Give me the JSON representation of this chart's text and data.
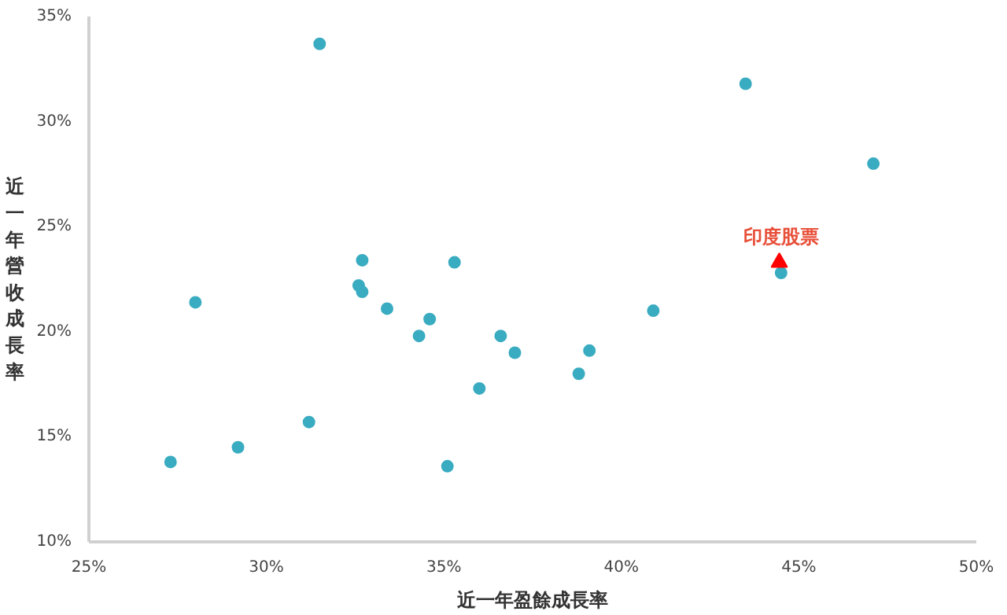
{
  "chart_data": {
    "type": "scatter",
    "xlabel": "近一年盈餘成長率",
    "ylabel": "近一年營收成長率",
    "marker": "circle",
    "grid": false,
    "xlim": [
      25,
      50
    ],
    "ylim": [
      10,
      35
    ],
    "xticks": [
      {
        "value": 25,
        "label": "25%"
      },
      {
        "value": 30,
        "label": "30%"
      },
      {
        "value": 35,
        "label": "35%"
      },
      {
        "value": 40,
        "label": "40%"
      },
      {
        "value": 45,
        "label": "45%"
      },
      {
        "value": 50,
        "label": "50%"
      }
    ],
    "yticks": [
      {
        "value": 10,
        "label": "10%"
      },
      {
        "value": 15,
        "label": "15%"
      },
      {
        "value": 20,
        "label": "20%"
      },
      {
        "value": 25,
        "label": "25%"
      },
      {
        "value": 30,
        "label": "30%"
      },
      {
        "value": 35,
        "label": "35%"
      }
    ],
    "series": [
      {
        "color": "#3aacc1",
        "x": [
          31.5,
          43.5,
          47.1,
          44.5,
          40.9,
          39.1,
          38.8,
          37.0,
          36.6,
          36.0,
          35.3,
          35.1,
          34.6,
          34.3,
          33.4,
          32.7,
          32.6,
          32.7,
          31.2,
          29.2,
          28.0,
          27.3
        ],
        "values": [
          33.7,
          31.8,
          28.0,
          22.8,
          21.0,
          19.1,
          18.0,
          19.0,
          19.8,
          17.3,
          23.3,
          13.6,
          20.6,
          19.8,
          21.1,
          23.4,
          22.2,
          21.9,
          15.7,
          14.5,
          21.4,
          13.8
        ]
      },
      {
        "type": "scatter",
        "marker": "triangle",
        "color": "#ff0000",
        "x": [
          44.45
        ],
        "values": [
          23.3
        ]
      }
    ],
    "annotations": [
      {
        "text": "印度股票",
        "x": 44.5,
        "y": 22.8
      }
    ]
  }
}
